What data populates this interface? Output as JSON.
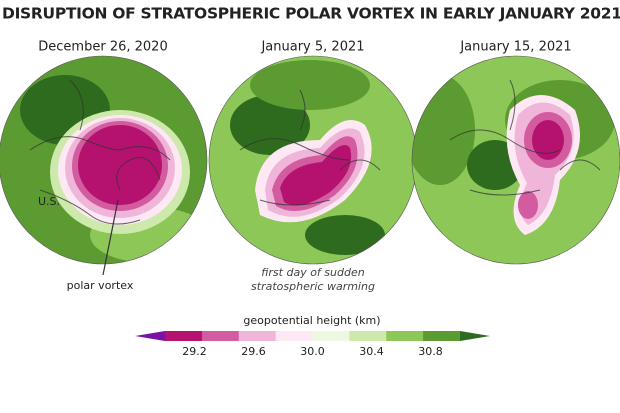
{
  "title": "DISRUPTION OF STRATOSPHERIC POLAR VORTEX IN EARLY JANUARY 2021",
  "panels": [
    {
      "date": "December 26, 2020"
    },
    {
      "date": "January 5, 2021"
    },
    {
      "date": "January 15, 2021"
    }
  ],
  "annotations": {
    "us": "U.S.",
    "polar_vortex": "polar vortex",
    "warming": [
      "first day of sudden",
      "stratospheric warming"
    ]
  },
  "legend": {
    "title": "geopotential height (km)",
    "lim": [
      29.0,
      31.0
    ],
    "colors": [
      "#7a12a8",
      "#b5126f",
      "#d35b9f",
      "#f0b6da",
      "#fde8f4",
      "#eef7df",
      "#cde9ab",
      "#8cc757",
      "#5c9b31",
      "#2f6b1e"
    ],
    "ticks": [
      29.2,
      29.6,
      {
        "value": 30.0,
        "label": "30.0"
      },
      30.4,
      30.8
    ]
  }
}
